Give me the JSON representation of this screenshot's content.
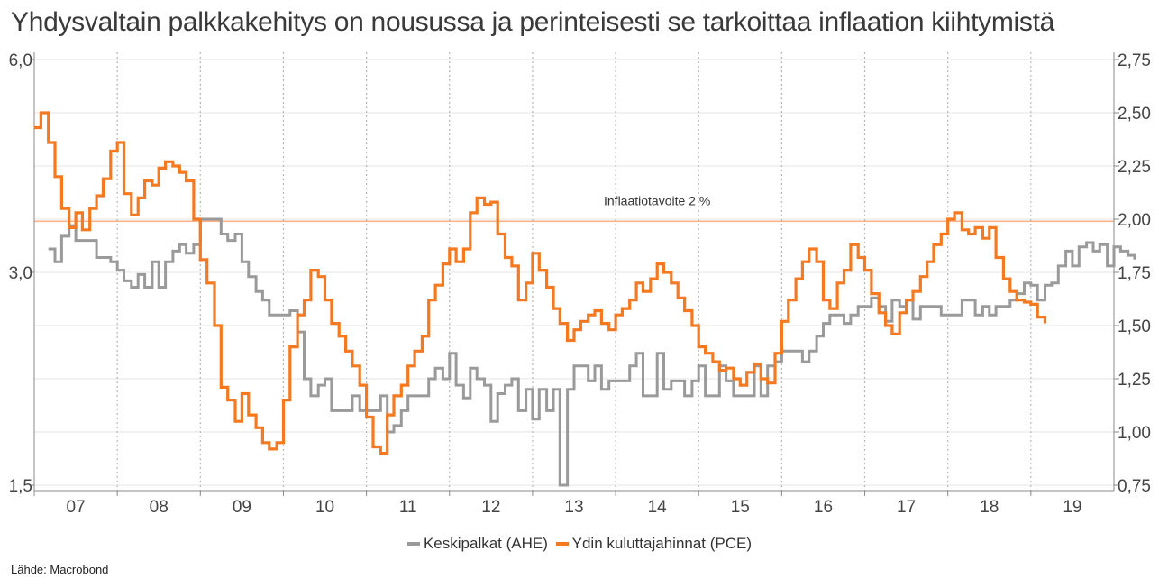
{
  "title": "Yhdysvaltain palkkakehitys on nousussa ja perinteisesti se tarkoittaa inflaation kiihtymistä",
  "source": "Lähde: Macrobond",
  "colors": {
    "ahe": "#9a9a9a",
    "pce": "#f47920",
    "target": "#f6b48a",
    "grid": "#e6e6e6",
    "yearline": "#b5b5b5"
  },
  "chart_data": {
    "type": "line",
    "x_axis": {
      "ticks": [
        "07",
        "08",
        "09",
        "10",
        "11",
        "12",
        "13",
        "14",
        "15",
        "16",
        "17",
        "18",
        "19"
      ],
      "range": [
        2006.5,
        2019.5
      ]
    },
    "y_left": {
      "ticks": [
        "6,0",
        "3,0",
        "1,5"
      ],
      "range": [
        1.5,
        6.0
      ]
    },
    "y_right": {
      "ticks": [
        "2,75",
        "2,50",
        "2,25",
        "2,00",
        "1,75",
        "1,50",
        "1,25",
        "1,00",
        "0,75"
      ],
      "range": [
        0.75,
        2.75
      ]
    },
    "annotation": {
      "text": "Inflaatiotavoite 2 %",
      "y_right": 1.99
    },
    "series": [
      {
        "name": "Keskipalkat (AHE)",
        "axis": "right",
        "color": "#9a9a9a",
        "points": [
          [
            2006.67,
            1.86
          ],
          [
            2006.75,
            1.8
          ],
          [
            2006.83,
            1.92
          ],
          [
            2006.92,
            1.97
          ],
          [
            2007.0,
            1.9
          ],
          [
            2007.17,
            1.9
          ],
          [
            2007.25,
            1.82
          ],
          [
            2007.42,
            1.8
          ],
          [
            2007.5,
            1.76
          ],
          [
            2007.58,
            1.71
          ],
          [
            2007.67,
            1.68
          ],
          [
            2007.75,
            1.74
          ],
          [
            2007.83,
            1.68
          ],
          [
            2007.92,
            1.8
          ],
          [
            2008.0,
            1.68
          ],
          [
            2008.08,
            1.8
          ],
          [
            2008.17,
            1.85
          ],
          [
            2008.25,
            1.88
          ],
          [
            2008.33,
            1.84
          ],
          [
            2008.42,
            1.88
          ],
          [
            2008.5,
            2.0
          ],
          [
            2008.67,
            2.0
          ],
          [
            2008.75,
            1.93
          ],
          [
            2008.83,
            1.9
          ],
          [
            2008.92,
            1.93
          ],
          [
            2009.0,
            1.8
          ],
          [
            2009.08,
            1.73
          ],
          [
            2009.17,
            1.66
          ],
          [
            2009.25,
            1.62
          ],
          [
            2009.33,
            1.55
          ],
          [
            2009.5,
            1.55
          ],
          [
            2009.58,
            1.57
          ],
          [
            2009.67,
            1.47
          ],
          [
            2009.75,
            1.25
          ],
          [
            2009.83,
            1.17
          ],
          [
            2009.92,
            1.22
          ],
          [
            2010.0,
            1.25
          ],
          [
            2010.08,
            1.1
          ],
          [
            2010.25,
            1.1
          ],
          [
            2010.33,
            1.17
          ],
          [
            2010.42,
            1.1
          ],
          [
            2010.67,
            1.17
          ],
          [
            2010.75,
            1.0
          ],
          [
            2010.83,
            1.03
          ],
          [
            2010.92,
            1.1
          ],
          [
            2011.0,
            1.17
          ],
          [
            2011.17,
            1.17
          ],
          [
            2011.25,
            1.25
          ],
          [
            2011.33,
            1.3
          ],
          [
            2011.42,
            1.25
          ],
          [
            2011.5,
            1.37
          ],
          [
            2011.58,
            1.22
          ],
          [
            2011.67,
            1.16
          ],
          [
            2011.75,
            1.3
          ],
          [
            2011.83,
            1.25
          ],
          [
            2011.92,
            1.22
          ],
          [
            2012.0,
            1.05
          ],
          [
            2012.08,
            1.18
          ],
          [
            2012.17,
            1.22
          ],
          [
            2012.25,
            1.25
          ],
          [
            2012.33,
            1.1
          ],
          [
            2012.42,
            1.2
          ],
          [
            2012.5,
            1.06
          ],
          [
            2012.58,
            1.2
          ],
          [
            2012.67,
            1.1
          ],
          [
            2012.75,
            1.2
          ],
          [
            2012.83,
            0.75
          ],
          [
            2012.92,
            1.2
          ],
          [
            2013.0,
            1.31
          ],
          [
            2013.17,
            1.24
          ],
          [
            2013.25,
            1.31
          ],
          [
            2013.33,
            1.2
          ],
          [
            2013.42,
            1.24
          ],
          [
            2013.67,
            1.31
          ],
          [
            2013.75,
            1.37
          ],
          [
            2013.83,
            1.17
          ],
          [
            2014.0,
            1.37
          ],
          [
            2014.08,
            1.2
          ],
          [
            2014.17,
            1.24
          ],
          [
            2014.33,
            1.17
          ],
          [
            2014.42,
            1.24
          ],
          [
            2014.5,
            1.31
          ],
          [
            2014.58,
            1.17
          ],
          [
            2014.75,
            1.31
          ],
          [
            2014.83,
            1.24
          ],
          [
            2014.92,
            1.17
          ],
          [
            2015.17,
            1.31
          ],
          [
            2015.25,
            1.17
          ],
          [
            2015.33,
            1.31
          ],
          [
            2015.42,
            1.33
          ],
          [
            2015.5,
            1.38
          ],
          [
            2015.67,
            1.38
          ],
          [
            2015.75,
            1.33
          ],
          [
            2015.83,
            1.38
          ],
          [
            2015.92,
            1.45
          ],
          [
            2016.0,
            1.51
          ],
          [
            2016.08,
            1.55
          ],
          [
            2016.25,
            1.51
          ],
          [
            2016.33,
            1.55
          ],
          [
            2016.42,
            1.59
          ],
          [
            2016.58,
            1.63
          ],
          [
            2016.67,
            1.59
          ],
          [
            2016.75,
            1.52
          ],
          [
            2016.83,
            1.62
          ],
          [
            2016.92,
            1.59
          ],
          [
            2017.0,
            1.62
          ],
          [
            2017.08,
            1.53
          ],
          [
            2017.17,
            1.59
          ],
          [
            2017.33,
            1.59
          ],
          [
            2017.42,
            1.55
          ],
          [
            2017.5,
            1.55
          ],
          [
            2017.67,
            1.62
          ],
          [
            2017.83,
            1.55
          ],
          [
            2017.92,
            1.59
          ],
          [
            2018.0,
            1.55
          ],
          [
            2018.08,
            1.59
          ],
          [
            2018.17,
            1.59
          ],
          [
            2018.25,
            1.62
          ],
          [
            2018.33,
            1.65
          ],
          [
            2018.42,
            1.7
          ],
          [
            2018.5,
            1.69
          ],
          [
            2018.58,
            1.62
          ],
          [
            2018.67,
            1.69
          ],
          [
            2018.75,
            1.7
          ],
          [
            2018.83,
            1.78
          ],
          [
            2018.92,
            1.85
          ],
          [
            2019.0,
            1.78
          ],
          [
            2019.08,
            1.87
          ],
          [
            2019.17,
            1.89
          ],
          [
            2019.25,
            1.85
          ],
          [
            2019.33,
            1.88
          ],
          [
            2019.42,
            1.78
          ],
          [
            2019.5,
            1.87
          ],
          [
            2019.58,
            1.85
          ],
          [
            2019.67,
            1.83
          ],
          [
            2019.75,
            1.81
          ]
        ]
      },
      {
        "name": "Ydin kuluttajahinnat (PCE)",
        "axis": "right",
        "color": "#f47920",
        "points": [
          [
            2006.5,
            2.43
          ],
          [
            2006.58,
            2.5
          ],
          [
            2006.67,
            2.36
          ],
          [
            2006.75,
            2.2
          ],
          [
            2006.83,
            2.05
          ],
          [
            2006.92,
            1.96
          ],
          [
            2007.0,
            2.03
          ],
          [
            2007.08,
            1.95
          ],
          [
            2007.17,
            2.05
          ],
          [
            2007.25,
            2.11
          ],
          [
            2007.33,
            2.19
          ],
          [
            2007.42,
            2.32
          ],
          [
            2007.5,
            2.36
          ],
          [
            2007.58,
            2.12
          ],
          [
            2007.67,
            2.02
          ],
          [
            2007.75,
            2.1
          ],
          [
            2007.83,
            2.18
          ],
          [
            2007.92,
            2.16
          ],
          [
            2008.0,
            2.24
          ],
          [
            2008.08,
            2.27
          ],
          [
            2008.17,
            2.25
          ],
          [
            2008.25,
            2.22
          ],
          [
            2008.33,
            2.18
          ],
          [
            2008.42,
            2.0
          ],
          [
            2008.5,
            1.81
          ],
          [
            2008.58,
            1.7
          ],
          [
            2008.67,
            1.5
          ],
          [
            2008.75,
            1.21
          ],
          [
            2008.83,
            1.15
          ],
          [
            2008.92,
            1.05
          ],
          [
            2009.0,
            1.18
          ],
          [
            2009.08,
            1.08
          ],
          [
            2009.17,
            1.02
          ],
          [
            2009.25,
            0.95
          ],
          [
            2009.33,
            0.92
          ],
          [
            2009.42,
            0.95
          ],
          [
            2009.5,
            1.15
          ],
          [
            2009.58,
            1.4
          ],
          [
            2009.67,
            1.55
          ],
          [
            2009.75,
            1.62
          ],
          [
            2009.83,
            1.76
          ],
          [
            2009.92,
            1.73
          ],
          [
            2010.0,
            1.62
          ],
          [
            2010.08,
            1.51
          ],
          [
            2010.17,
            1.45
          ],
          [
            2010.25,
            1.38
          ],
          [
            2010.33,
            1.31
          ],
          [
            2010.42,
            1.22
          ],
          [
            2010.5,
            1.07
          ],
          [
            2010.58,
            0.93
          ],
          [
            2010.67,
            0.9
          ],
          [
            2010.75,
            1.08
          ],
          [
            2010.83,
            1.17
          ],
          [
            2010.92,
            1.22
          ],
          [
            2011.0,
            1.31
          ],
          [
            2011.08,
            1.38
          ],
          [
            2011.17,
            1.45
          ],
          [
            2011.25,
            1.62
          ],
          [
            2011.33,
            1.69
          ],
          [
            2011.42,
            1.79
          ],
          [
            2011.5,
            1.86
          ],
          [
            2011.58,
            1.8
          ],
          [
            2011.67,
            1.86
          ],
          [
            2011.75,
            2.03
          ],
          [
            2011.83,
            2.1
          ],
          [
            2011.92,
            2.07
          ],
          [
            2012.0,
            2.08
          ],
          [
            2012.08,
            1.93
          ],
          [
            2012.17,
            1.82
          ],
          [
            2012.25,
            1.78
          ],
          [
            2012.33,
            1.62
          ],
          [
            2012.42,
            1.7
          ],
          [
            2012.5,
            1.84
          ],
          [
            2012.58,
            1.76
          ],
          [
            2012.67,
            1.68
          ],
          [
            2012.75,
            1.58
          ],
          [
            2012.83,
            1.51
          ],
          [
            2012.92,
            1.43
          ],
          [
            2013.0,
            1.48
          ],
          [
            2013.08,
            1.52
          ],
          [
            2013.17,
            1.55
          ],
          [
            2013.25,
            1.57
          ],
          [
            2013.33,
            1.51
          ],
          [
            2013.42,
            1.48
          ],
          [
            2013.5,
            1.55
          ],
          [
            2013.58,
            1.58
          ],
          [
            2013.67,
            1.62
          ],
          [
            2013.75,
            1.7
          ],
          [
            2013.83,
            1.66
          ],
          [
            2013.92,
            1.72
          ],
          [
            2014.0,
            1.79
          ],
          [
            2014.08,
            1.75
          ],
          [
            2014.17,
            1.7
          ],
          [
            2014.25,
            1.63
          ],
          [
            2014.33,
            1.57
          ],
          [
            2014.42,
            1.5
          ],
          [
            2014.5,
            1.4
          ],
          [
            2014.58,
            1.37
          ],
          [
            2014.67,
            1.33
          ],
          [
            2014.75,
            1.29
          ],
          [
            2014.83,
            1.3
          ],
          [
            2014.92,
            1.25
          ],
          [
            2015.0,
            1.22
          ],
          [
            2015.08,
            1.28
          ],
          [
            2015.17,
            1.32
          ],
          [
            2015.25,
            1.25
          ],
          [
            2015.33,
            1.23
          ],
          [
            2015.42,
            1.37
          ],
          [
            2015.5,
            1.52
          ],
          [
            2015.58,
            1.62
          ],
          [
            2015.67,
            1.72
          ],
          [
            2015.75,
            1.8
          ],
          [
            2015.83,
            1.86
          ],
          [
            2015.92,
            1.8
          ],
          [
            2016.0,
            1.62
          ],
          [
            2016.08,
            1.58
          ],
          [
            2016.17,
            1.7
          ],
          [
            2016.25,
            1.76
          ],
          [
            2016.33,
            1.88
          ],
          [
            2016.42,
            1.82
          ],
          [
            2016.5,
            1.76
          ],
          [
            2016.58,
            1.65
          ],
          [
            2016.67,
            1.56
          ],
          [
            2016.75,
            1.5
          ],
          [
            2016.83,
            1.46
          ],
          [
            2016.92,
            1.56
          ],
          [
            2017.0,
            1.62
          ],
          [
            2017.08,
            1.66
          ],
          [
            2017.17,
            1.73
          ],
          [
            2017.25,
            1.8
          ],
          [
            2017.33,
            1.88
          ],
          [
            2017.42,
            1.93
          ],
          [
            2017.5,
            2.0
          ],
          [
            2017.58,
            2.03
          ],
          [
            2017.67,
            1.95
          ],
          [
            2017.75,
            1.93
          ],
          [
            2017.83,
            1.96
          ],
          [
            2017.92,
            1.91
          ],
          [
            2018.0,
            1.96
          ],
          [
            2018.08,
            1.82
          ],
          [
            2018.17,
            1.72
          ],
          [
            2018.25,
            1.66
          ],
          [
            2018.33,
            1.62
          ],
          [
            2018.42,
            1.61
          ],
          [
            2018.5,
            1.6
          ],
          [
            2018.58,
            1.54
          ],
          [
            2018.67,
            1.51
          ]
        ]
      }
    ]
  },
  "legend": [
    {
      "label": "Keskipalkat (AHE)",
      "color": "#9a9a9a"
    },
    {
      "label": "Ydin kuluttajahinnat (PCE)",
      "color": "#f47920"
    }
  ]
}
